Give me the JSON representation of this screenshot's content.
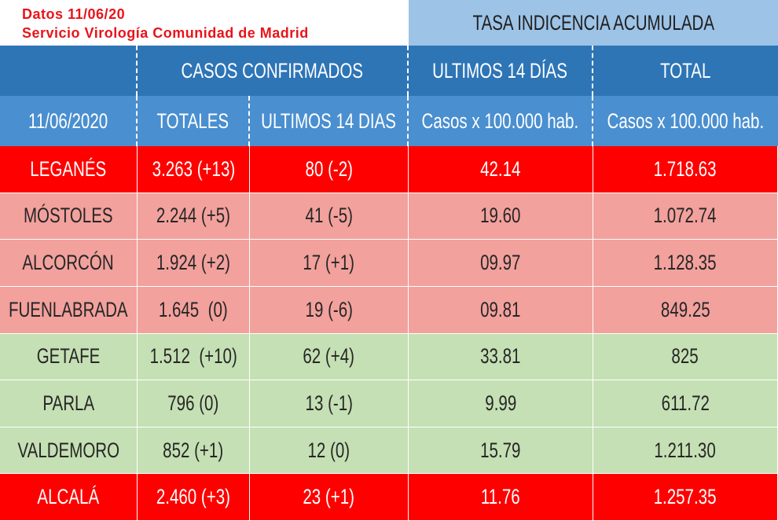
{
  "header": {
    "date": "Datos 11/06/20",
    "source": "Servicio Virología Comunidad de Madrid",
    "title": "TASA INDICENCIA ACUMULADA"
  },
  "table": {
    "group_headers": [
      "CASOS CONFIRMADOS",
      "ULTIMOS 14 DÍAS",
      "TOTAL"
    ],
    "columns": [
      "11/06/2020",
      "TOTALES",
      "ULTIMOS 14 DIAS",
      "Casos x 100.000 hab.",
      "Casos x 100.000 hab."
    ],
    "rows": [
      [
        "LEGANÉS",
        "3.263 (+13)",
        "80 (-2)",
        "42.14",
        "1.718.63"
      ],
      [
        "MÓSTOLES",
        "2.244 (+5)",
        "41 (-5)",
        "19.60",
        "1.072.74"
      ],
      [
        "ALCORCÓN",
        "1.924 (+2)",
        "17 (+1)",
        "09.97",
        "1.128.35"
      ],
      [
        "FUENLABRADA",
        "1.645  (0)",
        "19 (-6)",
        "09.81",
        "849.25"
      ],
      [
        "GETAFE",
        "1.512  (+10)",
        "62 (+4)",
        "33.81",
        "825"
      ],
      [
        "PARLA",
        "796 (0)",
        "13 (-1)",
        "9.99",
        "611.72"
      ],
      [
        "VALDEMORO",
        "852 (+1)",
        "12 (0)",
        "15.79",
        "1.211.30"
      ],
      [
        "ALCALÁ",
        "2.460 (+3)",
        "23 (+1)",
        "11.76",
        "1.257.35"
      ]
    ]
  }
}
